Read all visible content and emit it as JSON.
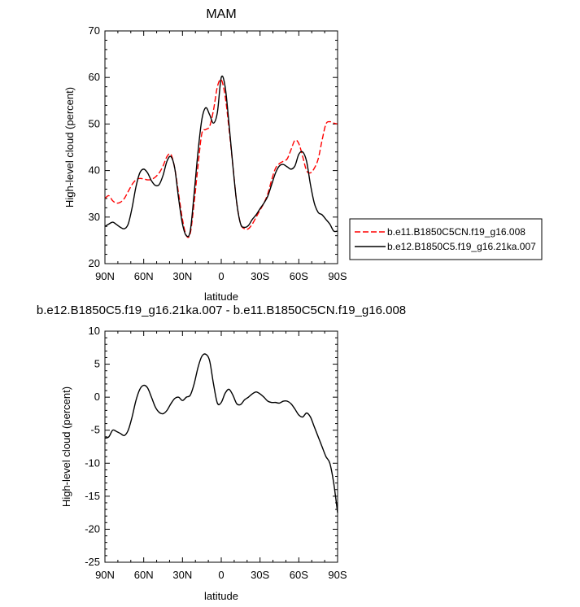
{
  "chart_data": [
    {
      "type": "line",
      "title": "MAM",
      "xlabel": "latitude",
      "ylabel": "High-level cloud (percent)",
      "xlim": [
        90,
        -90
      ],
      "ylim": [
        20,
        70
      ],
      "x_ticks": [
        {
          "value": 90,
          "label": "90N"
        },
        {
          "value": 60,
          "label": "60N"
        },
        {
          "value": 30,
          "label": "30N"
        },
        {
          "value": 0,
          "label": "0"
        },
        {
          "value": -30,
          "label": "30S"
        },
        {
          "value": -60,
          "label": "60S"
        },
        {
          "value": -90,
          "label": "90S"
        }
      ],
      "y_ticks": [
        20,
        30,
        40,
        50,
        60,
        70
      ],
      "grid": false,
      "legend_position": "right",
      "series": [
        {
          "name": "b.e11.B1850C5CN.f19_g16.008",
          "color": "#ff0000",
          "dash": "dashed",
          "x": [
            90,
            87,
            84,
            81,
            78,
            75,
            72,
            69,
            66,
            63,
            60,
            57,
            54,
            51,
            48,
            45,
            42,
            39,
            36,
            33,
            30,
            27,
            24,
            21,
            18,
            15,
            12,
            9,
            6,
            3,
            0,
            -3,
            -6,
            -9,
            -12,
            -15,
            -18,
            -21,
            -24,
            -27,
            -30,
            -33,
            -36,
            -39,
            -42,
            -45,
            -48,
            -51,
            -54,
            -57,
            -60,
            -63,
            -66,
            -69,
            -72,
            -75,
            -78,
            -81,
            -84,
            -87,
            -90
          ],
          "y": [
            34.0,
            34.6,
            33.5,
            33.0,
            33.2,
            34.0,
            35.5,
            37.0,
            38.0,
            38.3,
            38.2,
            38.0,
            38.1,
            38.6,
            39.5,
            41.0,
            43.0,
            43.5,
            40.5,
            35.0,
            29.5,
            26.0,
            26.5,
            33.0,
            41.0,
            48.0,
            48.8,
            49.5,
            53.0,
            58.0,
            59.5,
            56.0,
            49.0,
            41.0,
            33.0,
            28.5,
            27.5,
            27.5,
            28.5,
            30.0,
            31.5,
            33.0,
            35.0,
            38.0,
            40.5,
            41.5,
            42.0,
            42.5,
            44.5,
            46.5,
            45.8,
            43.0,
            40.0,
            39.5,
            40.5,
            42.5,
            46.5,
            50.0,
            50.5,
            50.2,
            50.0
          ]
        },
        {
          "name": "b.e12.B1850C5.f19_g16.21ka.007",
          "color": "#000000",
          "dash": "solid",
          "x": [
            90,
            87,
            84,
            81,
            78,
            75,
            72,
            69,
            66,
            63,
            60,
            57,
            54,
            51,
            48,
            45,
            42,
            39,
            36,
            33,
            30,
            27,
            24,
            21,
            18,
            15,
            12,
            9,
            6,
            3,
            0,
            -3,
            -6,
            -9,
            -12,
            -15,
            -18,
            -21,
            -24,
            -27,
            -30,
            -33,
            -36,
            -39,
            -42,
            -45,
            -48,
            -51,
            -54,
            -57,
            -60,
            -63,
            -66,
            -69,
            -72,
            -75,
            -78,
            -81,
            -84,
            -87,
            -90
          ],
          "y": [
            28.0,
            28.5,
            28.9,
            28.4,
            27.8,
            27.5,
            28.5,
            32.0,
            36.5,
            39.5,
            40.3,
            39.5,
            37.8,
            36.8,
            37.0,
            39.0,
            42.0,
            43.0,
            40.5,
            34.0,
            28.5,
            26.0,
            27.0,
            35.0,
            44.0,
            51.0,
            53.5,
            52.0,
            50.2,
            52.5,
            60.0,
            58.0,
            50.0,
            41.0,
            33.0,
            28.5,
            27.8,
            28.2,
            29.5,
            30.5,
            31.8,
            33.0,
            34.5,
            37.0,
            39.5,
            41.0,
            41.3,
            40.8,
            40.3,
            41.0,
            43.5,
            44.0,
            42.0,
            37.0,
            33.0,
            31.0,
            30.5,
            29.5,
            28.5,
            27.0,
            27.0
          ]
        }
      ]
    },
    {
      "type": "line",
      "title": "b.e12.B1850C5.f19_g16.21ka.007 - b.e11.B1850C5CN.f19_g16.008",
      "xlabel": "latitude",
      "ylabel": "High-level cloud (percent)",
      "xlim": [
        90,
        -90
      ],
      "ylim": [
        -25,
        10
      ],
      "x_ticks": [
        {
          "value": 90,
          "label": "90N"
        },
        {
          "value": 60,
          "label": "60N"
        },
        {
          "value": 30,
          "label": "30N"
        },
        {
          "value": 0,
          "label": "0"
        },
        {
          "value": -30,
          "label": "30S"
        },
        {
          "value": -60,
          "label": "60S"
        },
        {
          "value": -90,
          "label": "90S"
        }
      ],
      "y_ticks": [
        -25,
        -20,
        -15,
        -10,
        -5,
        0,
        5,
        10
      ],
      "grid": false,
      "series": [
        {
          "color": "#000000",
          "dash": "solid",
          "x": [
            90,
            87,
            84,
            81,
            78,
            75,
            72,
            69,
            66,
            63,
            60,
            57,
            54,
            51,
            48,
            45,
            42,
            39,
            36,
            33,
            30,
            27,
            24,
            21,
            18,
            15,
            12,
            9,
            6,
            3,
            0,
            -3,
            -6,
            -9,
            -12,
            -15,
            -18,
            -21,
            -24,
            -27,
            -30,
            -33,
            -36,
            -39,
            -42,
            -45,
            -48,
            -51,
            -54,
            -57,
            -60,
            -63,
            -66,
            -69,
            -72,
            -75,
            -78,
            -81,
            -84,
            -87,
            -90
          ],
          "y": [
            -6.2,
            -6.0,
            -5.0,
            -5.2,
            -5.5,
            -5.8,
            -5.0,
            -3.0,
            -0.5,
            1.2,
            1.8,
            1.4,
            0.0,
            -1.5,
            -2.3,
            -2.5,
            -2.0,
            -1.0,
            -0.2,
            0.0,
            -0.5,
            0.0,
            0.3,
            2.0,
            4.5,
            6.2,
            6.5,
            5.5,
            2.0,
            -0.9,
            -0.8,
            0.6,
            1.2,
            0.3,
            -1.0,
            -1.1,
            -0.4,
            0.0,
            0.5,
            0.8,
            0.5,
            0.0,
            -0.6,
            -0.8,
            -0.8,
            -0.9,
            -0.6,
            -0.6,
            -1.0,
            -1.8,
            -2.7,
            -3.0,
            -2.4,
            -3.0,
            -4.5,
            -6.0,
            -7.5,
            -9.0,
            -10.0,
            -13.0,
            -17.5
          ]
        }
      ]
    }
  ]
}
